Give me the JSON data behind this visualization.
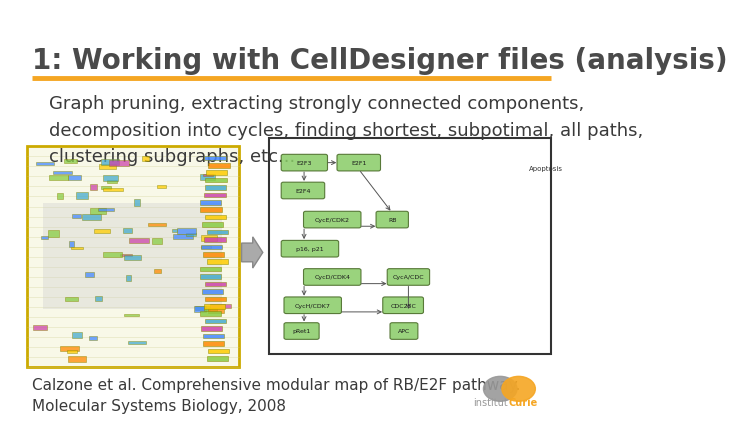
{
  "title": "1: Working with CellDesigner files (analysis)",
  "title_color": "#4a4a4a",
  "title_fontsize": 20,
  "title_bold": true,
  "orange_line_color": "#F5A623",
  "body_text": "Graph pruning, extracting strongly connected components,\ndecomposition into cycles, finding shortest, subpotimal, all paths,\nclustering subgraphs, etc...",
  "body_fontsize": 13,
  "body_color": "#3a3a3a",
  "citation_text": "Calzone et al. Comprehensive modular map of RB/E2F pathway.\nMolecular Systems Biology, 2008",
  "citation_fontsize": 11,
  "citation_color": "#3a3a3a",
  "logo_text_institut": "institut",
  "logo_text_curie": "Curie",
  "logo_orange": "#F5A623",
  "logo_gray": "#999999",
  "background_color": "#ffffff"
}
